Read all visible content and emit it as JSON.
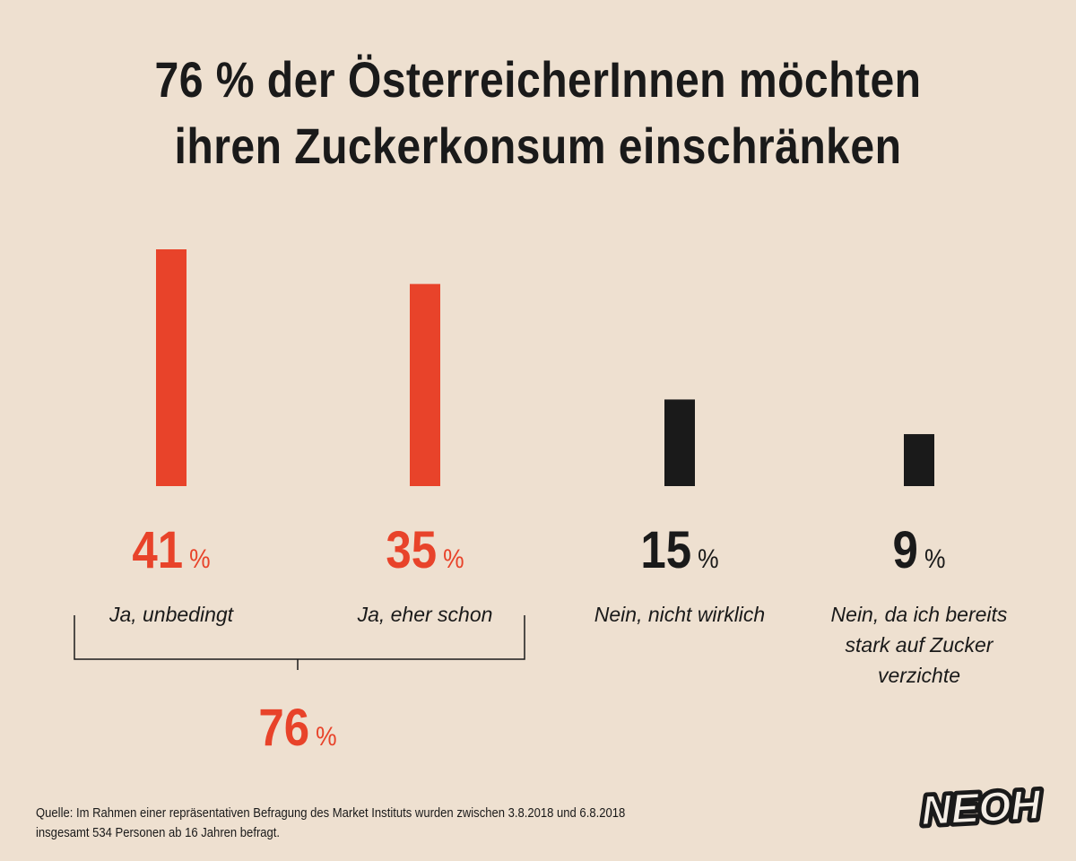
{
  "title": {
    "line1": "76 % der ÖsterreicherInnen möchten",
    "line2": "ihren Zuckerkonsum einschränken"
  },
  "colors": {
    "background": "#EEE0D0",
    "accent": "#E8432A",
    "dark": "#1A1A1A"
  },
  "chart_data": {
    "type": "bar",
    "categories": [
      "Ja, unbedingt",
      "Ja, eher schon",
      "Nein, nicht wirklich",
      "Nein, da ich bereits stark auf Zucker verzichte"
    ],
    "category_lines": [
      [
        "Ja, unbedingt"
      ],
      [
        "Ja, eher schon"
      ],
      [
        "Nein, nicht wirklich"
      ],
      [
        "Nein, da ich bereits",
        "stark auf Zucker",
        "verzichte"
      ]
    ],
    "values": [
      41,
      35,
      15,
      9
    ],
    "value_labels": [
      "41",
      "35",
      "15",
      "9"
    ],
    "unit": "%",
    "bar_colors": [
      "#E8432A",
      "#E8432A",
      "#1A1A1A",
      "#1A1A1A"
    ],
    "ylim": [
      0,
      41
    ],
    "grid": false,
    "legend": "none",
    "group_total": {
      "categories": [
        "Ja, unbedingt",
        "Ja, eher schon"
      ],
      "value": 76,
      "value_label": "76",
      "unit": "%"
    }
  },
  "source": {
    "line1": "Quelle: Im Rahmen einer repräsentativen Befragung des Market Instituts wurden zwischen 3.8.2018 und 6.8.2018",
    "line2": "insgesamt 534 Personen ab 16 Jahren befragt."
  },
  "logo": {
    "text": "NEOH",
    "icon": "neoh-logo"
  }
}
